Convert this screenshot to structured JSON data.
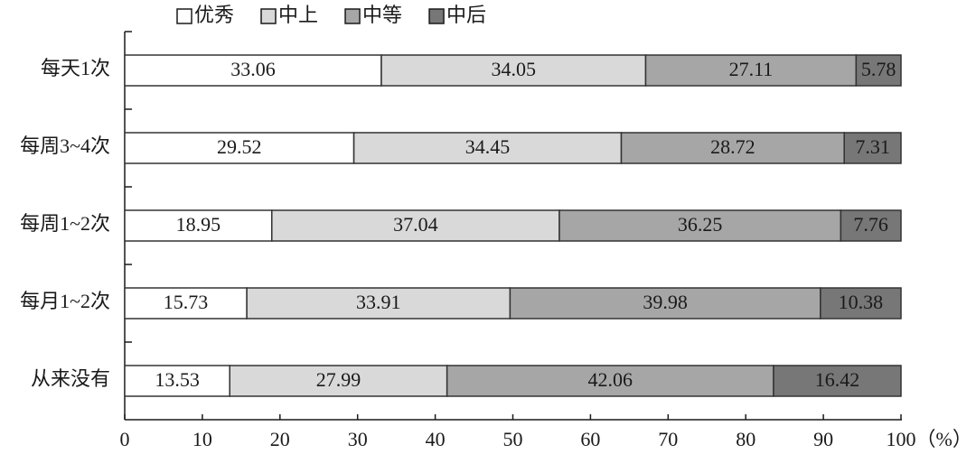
{
  "chart_data": {
    "type": "bar",
    "orientation": "horizontal",
    "stacked": true,
    "categories": [
      "每天1次",
      "每周3~4次",
      "每周1~2次",
      "每月1~2次",
      "从来没有"
    ],
    "series": [
      {
        "name": "优秀",
        "color": "#ffffff",
        "values": [
          33.06,
          29.52,
          18.95,
          15.73,
          13.53
        ]
      },
      {
        "name": "中上",
        "color": "#d9d9d9",
        "values": [
          34.05,
          34.45,
          37.04,
          33.91,
          27.99
        ]
      },
      {
        "name": "中等",
        "color": "#a6a6a6",
        "values": [
          27.11,
          28.72,
          36.25,
          39.98,
          42.06
        ]
      },
      {
        "name": "中后",
        "color": "#777777",
        "values": [
          5.78,
          7.31,
          7.76,
          10.38,
          16.42
        ]
      }
    ],
    "xlim": [
      0,
      100
    ],
    "xticks": [
      0,
      10,
      20,
      30,
      40,
      50,
      60,
      70,
      80,
      90,
      100
    ],
    "x_label": "（%）",
    "legend": "top"
  }
}
